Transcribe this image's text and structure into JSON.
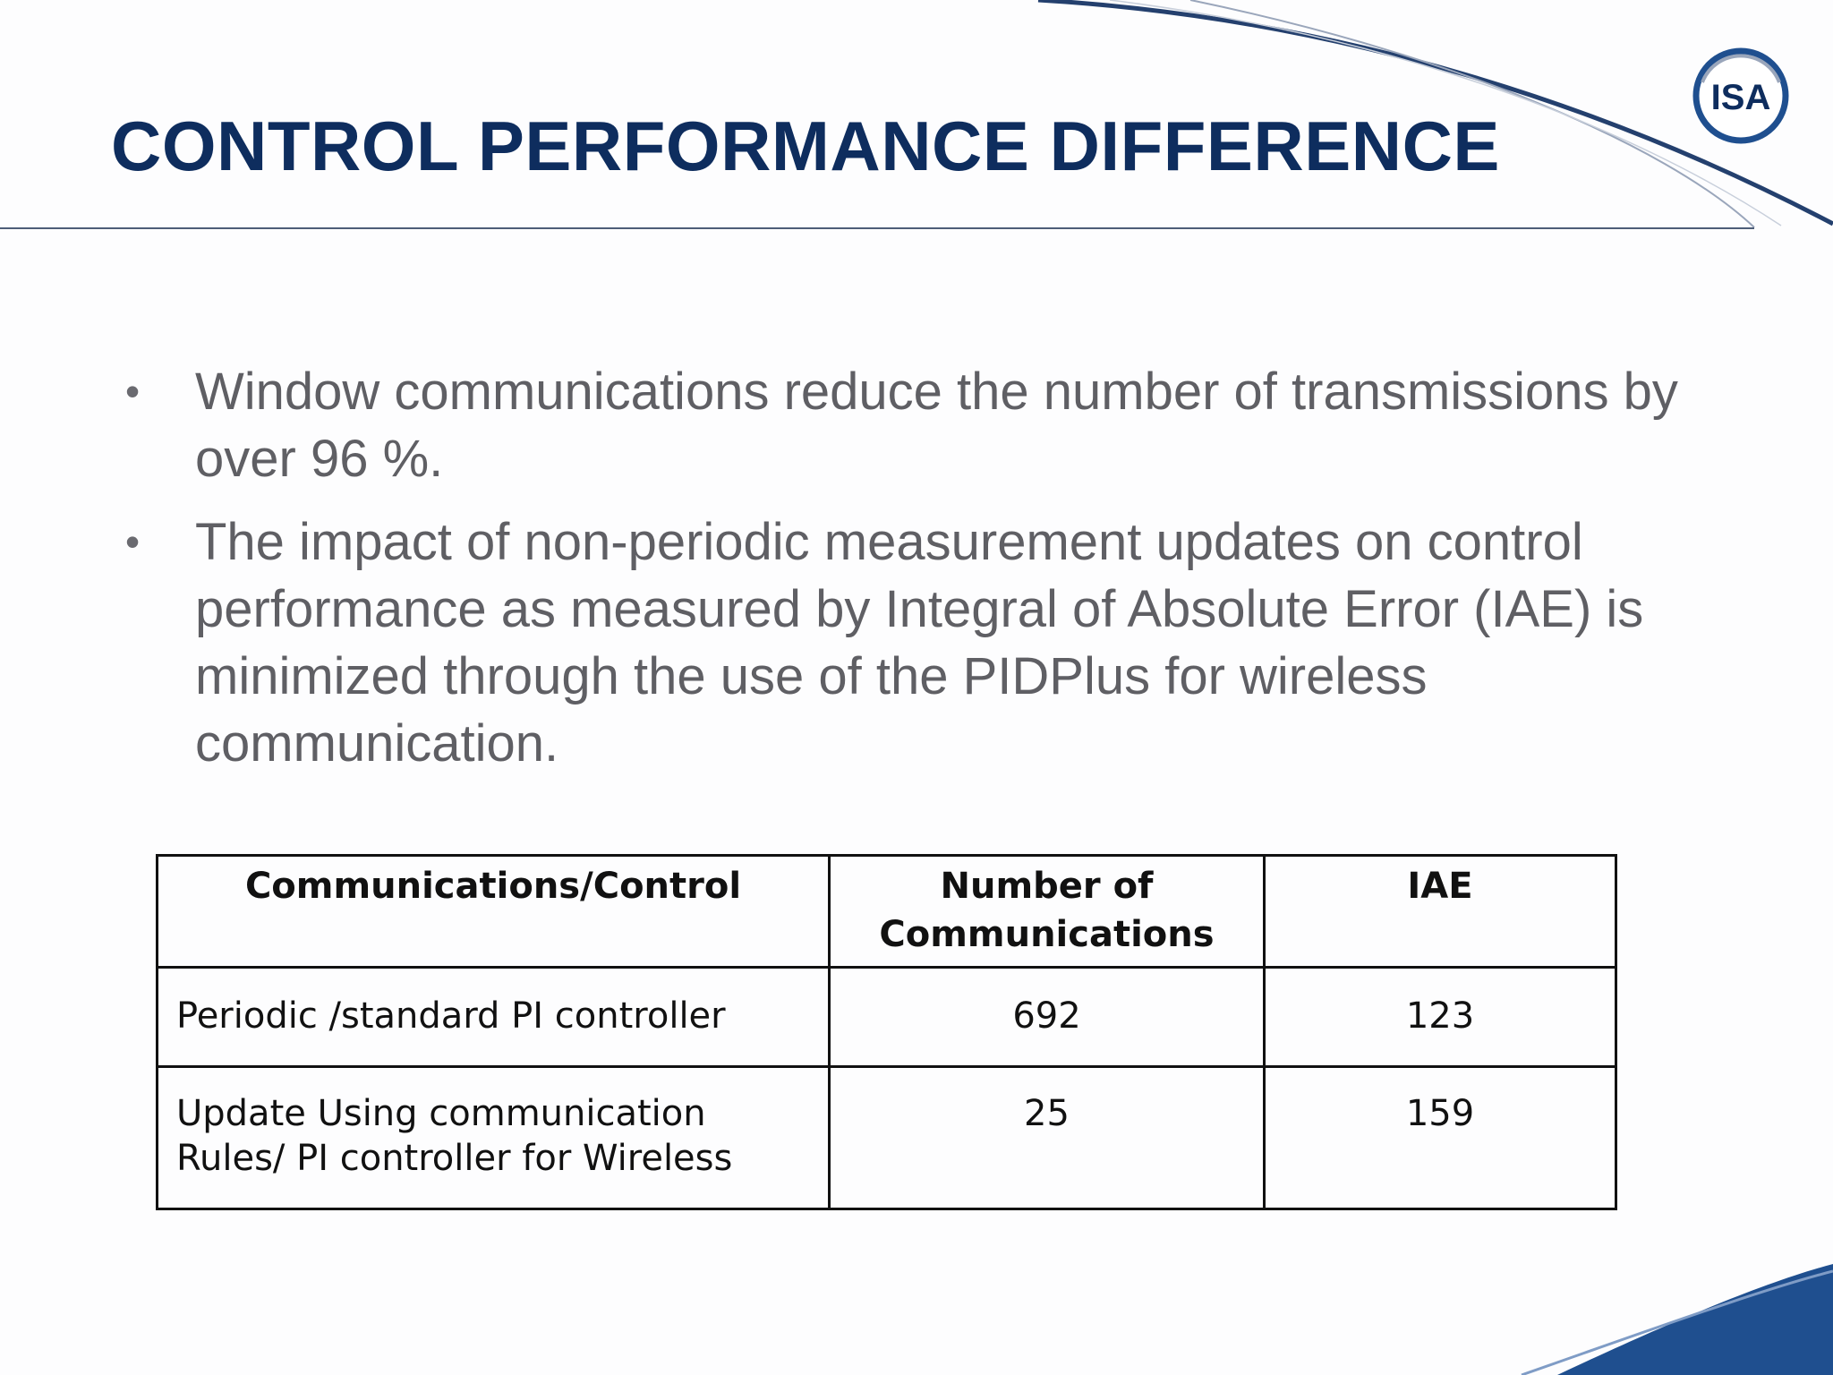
{
  "slide": {
    "title": "CONTROL PERFORMANCE DIFFERENCE",
    "logo_text": "ISA",
    "colors": {
      "title": "#0e2d5e",
      "body_text": "#5f5f64",
      "accent_blue": "#1f4f8f"
    }
  },
  "bullets": [
    "Window communications reduce the number of transmissions by over 96 %.",
    "The impact of non-periodic measurement updates on control performance as measured by Integral of Absolute Error (IAE) is minimized through the use of the PIDPlus for wireless communication."
  ],
  "bullet_symbol": "•",
  "table": {
    "headers": [
      "Communications/Control",
      "Number of Communications",
      "IAE"
    ],
    "rows": [
      [
        "Periodic /standard PI controller",
        "692",
        "123"
      ],
      [
        "Update Using communication Rules/ PI controller for Wireless",
        "25",
        "159"
      ]
    ]
  }
}
